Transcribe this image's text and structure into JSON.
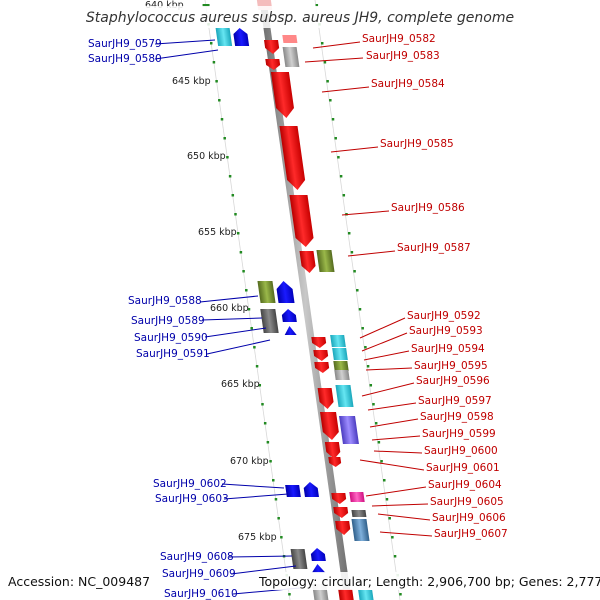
{
  "title": "Staphylococcus aureus subsp. aureus JH9, complete genome",
  "footer": {
    "accession": "Accession: NC_009487",
    "summary": "Topology: circular; Length: 2,906,700 bp; Genes: 2,777"
  },
  "ruler_labels": [
    "640 kbp",
    "645 kbp",
    "650 kbp",
    "655 kbp",
    "660 kbp",
    "665 kbp",
    "670 kbp",
    "675 kbp"
  ],
  "reverse_strand_labels": [
    "SaurJH9_0579",
    "SaurJH9_0580",
    "SaurJH9_0588",
    "SaurJH9_0589",
    "SaurJH9_0590",
    "SaurJH9_0591",
    "SaurJH9_0602",
    "SaurJH9_0603",
    "SaurJH9_0608",
    "SaurJH9_0609",
    "SaurJH9_0610"
  ],
  "forward_strand_labels": [
    "SaurJH9_0582",
    "SaurJH9_0583",
    "SaurJH9_0584",
    "SaurJH9_0585",
    "SaurJH9_0586",
    "SaurJH9_0587",
    "SaurJH9_0592",
    "SaurJH9_0593",
    "SaurJH9_0594",
    "SaurJH9_0595",
    "SaurJH9_0596",
    "SaurJH9_0597",
    "SaurJH9_0598",
    "SaurJH9_0599",
    "SaurJH9_0600",
    "SaurJH9_0601",
    "SaurJH9_0604",
    "SaurJH9_0605",
    "SaurJH9_0606",
    "SaurJH9_0607"
  ],
  "colors": {
    "forward_cds": "#ff0000",
    "reverse_cds": "#0000dd",
    "backbone": "#888888",
    "ruler_ticks": "#228b22",
    "forward_label": "#c00000",
    "reverse_label": "#0000aa",
    "cog_cyan": "#33ccdd",
    "cog_gray": "#a0a0a0",
    "cog_green": "#6b8e23",
    "cog_dark_gray": "#666666",
    "cog_purple": "#7b68ee",
    "cog_magenta": "#ff33aa",
    "cog_steel": "#4682b4"
  }
}
